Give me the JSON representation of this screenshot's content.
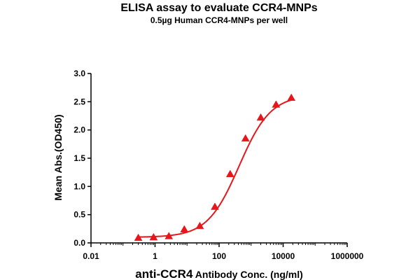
{
  "chart_data": {
    "type": "scatter",
    "title": "ELISA assay to evaluate CCR4-MNPs",
    "subtitle": "0.5µg Human CCR4-MNPs per well",
    "xlabel_main": "anti-CCR4",
    "xlabel_rest": " Antibody Conc. (ng/ml)",
    "ylabel": "Mean Abs.(OD450)",
    "x_scale": "log",
    "xlim": [
      0.01,
      1000000
    ],
    "ylim": [
      0,
      3.0
    ],
    "x_ticks": [
      0.01,
      1,
      100,
      10000,
      1000000
    ],
    "x_tick_labels": [
      "0.01",
      "1",
      "100",
      "10000",
      "1000000"
    ],
    "y_ticks": [
      0,
      0.5,
      1.0,
      1.5,
      2.0,
      2.5,
      3.0
    ],
    "y_tick_labels": [
      "0.0",
      "0.5",
      "1.0",
      "1.5",
      "2.0",
      "2.5",
      "3.0"
    ],
    "grid": false,
    "legend": "none",
    "color": "#e8161b",
    "marker": "triangle",
    "fit": "sigmoidal 4PL",
    "fit_params": {
      "bottom": 0.1,
      "top": 2.62,
      "ec50": 420,
      "hill": 0.88
    },
    "series": [
      {
        "x": [
          0.3,
          0.9,
          2.7,
          8.2,
          25,
          74,
          222,
          667,
          2000,
          6000,
          18000
        ],
        "y": [
          0.09,
          0.1,
          0.12,
          0.24,
          0.3,
          0.64,
          1.22,
          1.85,
          2.22,
          2.45,
          2.57
        ]
      }
    ]
  }
}
